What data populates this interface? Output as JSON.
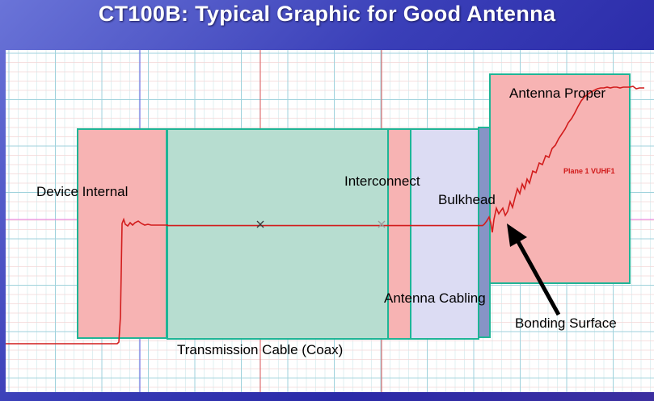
{
  "title": "CT100B: Typical Graphic for Good Antenna",
  "labels": {
    "device_internal": "Device Internal",
    "transmission_cable": "Transmission Cable (Coax)",
    "interconnect": "Interconnect",
    "antenna_cabling": "Antenna Cabling",
    "bulkhead": "Bulkhead",
    "antenna_proper": "Antenna Proper",
    "bonding_surface": "Bonding Surface",
    "series_name": "Plane 1 VUHF1"
  },
  "colors": {
    "device_internal": "#f7b3b3",
    "transmission_cable": "#b7ddd0",
    "interconnect": "#f7b3b3",
    "antenna_cabling": "#dcdcf3",
    "bulkhead": "#8794c6",
    "antenna_proper": "#f7b3b3",
    "region_border": "#1fb596",
    "trace": "#d21c1c"
  }
}
